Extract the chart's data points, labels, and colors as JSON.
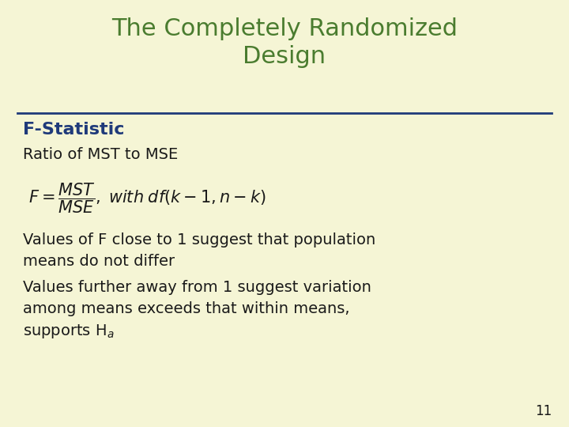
{
  "background_color": "#f5f5d5",
  "title": "The Completely Randomized\nDesign",
  "title_color": "#4a7c2f",
  "title_fontsize": 22,
  "separator_color": "#1f3a7a",
  "section_heading": "F-Statistic",
  "section_heading_color": "#1f3a7a",
  "section_heading_fontsize": 16,
  "body_color": "#1a1a1a",
  "body_fontsize": 14,
  "slide_number": "11",
  "slide_number_color": "#1a1a1a",
  "slide_number_fontsize": 12,
  "line1": "Ratio of MST to MSE",
  "bullet1_line1": "Values of F close to 1 suggest that population",
  "bullet1_line2": "means do not differ",
  "bullet2_line1": "Values further away from 1 suggest variation",
  "bullet2_line2": "among means exceeds that within means,",
  "bullet2_line3": "supports H$_a$"
}
